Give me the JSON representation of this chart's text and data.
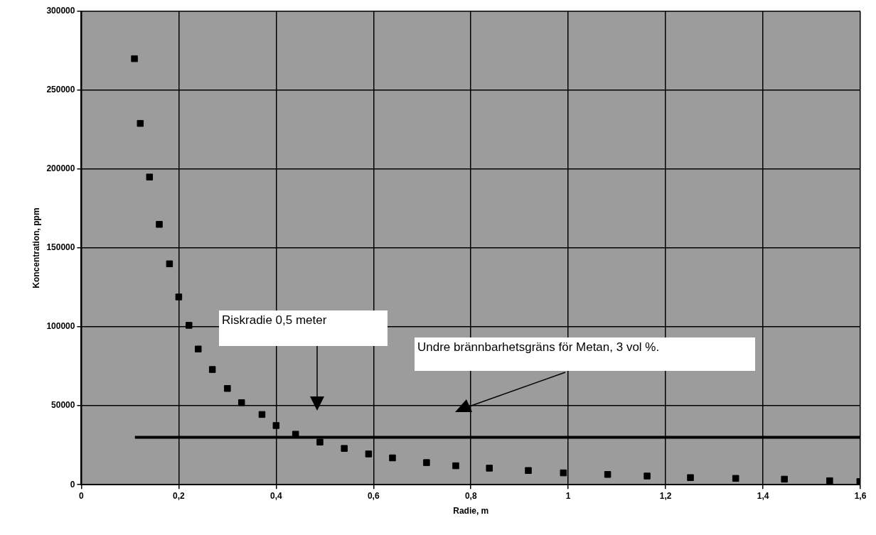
{
  "chart_data": {
    "type": "scatter",
    "xlabel": "Radie, m",
    "ylabel": "Koncentration, ppm",
    "series": [
      {
        "type": "scatter",
        "color": "#000000",
        "marker": "square",
        "x": [
          0.109,
          0.121,
          0.14,
          0.16,
          0.181,
          0.2,
          0.221,
          0.24,
          0.269,
          0.3,
          0.329,
          0.371,
          0.4,
          0.44,
          0.49,
          0.54,
          0.59,
          0.639,
          0.709,
          0.769,
          0.838,
          0.918,
          0.99,
          1.081,
          1.162,
          1.251,
          1.344,
          1.444,
          1.537,
          1.599
        ],
        "values": [
          270000,
          229000,
          195000,
          165000,
          140000,
          119000,
          101000,
          86000,
          73000,
          61000,
          52000,
          44500,
          37500,
          32000,
          27000,
          23000,
          19500,
          17000,
          14000,
          12000,
          10500,
          9000,
          7500,
          6500,
          5500,
          4500,
          4000,
          3500,
          2500,
          2000
        ]
      },
      {
        "type": "line",
        "color": "#000000",
        "marker": "none",
        "line_style": "solid",
        "x": [
          0.11,
          1.6
        ],
        "values": [
          30000,
          30000
        ]
      }
    ],
    "xlim": [
      0,
      1.6
    ],
    "xticks": [
      0,
      {
        "value": 0.2,
        "label": "0,2"
      },
      {
        "value": 0.4,
        "label": "0,4"
      },
      {
        "value": 0.6,
        "label": "0,6"
      },
      {
        "value": 0.8,
        "label": "0,8"
      },
      1,
      {
        "value": 1.2,
        "label": "1,2"
      },
      {
        "value": 1.4,
        "label": "1,4"
      },
      {
        "value": 1.6,
        "label": "1,6"
      }
    ],
    "ylim": [
      0,
      300000
    ],
    "yticks": [
      0,
      50000,
      100000,
      150000,
      200000,
      250000,
      300000
    ],
    "grid": true,
    "annotations": [
      "Riskradie 0,5 meter",
      "Undre brännbarhetsgräns för Metan, 3 vol %."
    ]
  }
}
